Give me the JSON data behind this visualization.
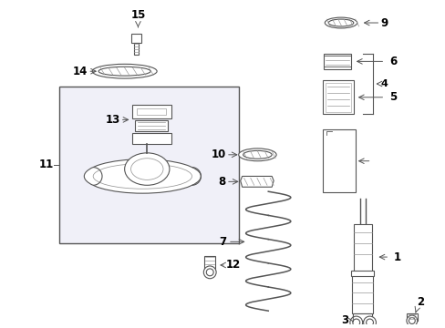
{
  "background_color": "#ffffff",
  "gray": "#555555",
  "lgray": "#999999",
  "lw": 0.8,
  "fig_w": 4.89,
  "fig_h": 3.6,
  "dpi": 100
}
